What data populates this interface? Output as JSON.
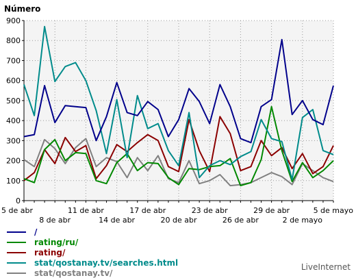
{
  "chart_data": {
    "type": "line",
    "title": "Número",
    "ylim": [
      0,
      900
    ],
    "yticks": [
      0,
      100,
      200,
      300,
      400,
      500,
      600,
      700,
      800,
      900
    ],
    "xtick_labels_row1": [
      {
        "i": 0,
        "label": "5 de abr"
      },
      {
        "i": 6,
        "label": "11 de abr"
      },
      {
        "i": 12,
        "label": "17 de abr"
      },
      {
        "i": 18,
        "label": "23 de abr"
      },
      {
        "i": 24,
        "label": "29 de abr"
      },
      {
        "i": 30,
        "label": "5 de mayo"
      }
    ],
    "xtick_labels_row2": [
      {
        "i": 3,
        "label": "8 de abr"
      },
      {
        "i": 9,
        "label": "14 de abr"
      },
      {
        "i": 15,
        "label": "20 de abr"
      },
      {
        "i": 21,
        "label": "26 de abr"
      },
      {
        "i": 27,
        "label": "2 de mayo"
      }
    ],
    "grid": true,
    "series": [
      {
        "name": "/",
        "color": "#00008b",
        "values": [
          320,
          330,
          575,
          390,
          475,
          470,
          465,
          300,
          420,
          590,
          440,
          425,
          495,
          455,
          320,
          405,
          560,
          495,
          385,
          580,
          470,
          310,
          290,
          470,
          505,
          805,
          430,
          500,
          405,
          380,
          575
        ]
      },
      {
        "name": "rating/ru/",
        "color": "#008800",
        "values": [
          110,
          90,
          255,
          305,
          200,
          240,
          235,
          100,
          85,
          190,
          235,
          150,
          190,
          185,
          115,
          80,
          160,
          155,
          170,
          175,
          210,
          75,
          90,
          205,
          470,
          250,
          95,
          190,
          115,
          150,
          200
        ]
      },
      {
        "name": "rating/",
        "color": "#8b0000",
        "values": [
          100,
          140,
          255,
          185,
          315,
          245,
          275,
          110,
          175,
          280,
          245,
          290,
          330,
          300,
          170,
          145,
          405,
          250,
          145,
          420,
          335,
          150,
          170,
          300,
          225,
          265,
          160,
          235,
          135,
          170,
          275
        ]
      },
      {
        "name": "stat/qostanay.tv/searches.html",
        "color": "#008b8b",
        "values": [
          580,
          425,
          870,
          595,
          670,
          690,
          600,
          450,
          235,
          505,
          215,
          525,
          360,
          385,
          250,
          175,
          440,
          115,
          175,
          200,
          180,
          220,
          245,
          405,
          310,
          295,
          105,
          415,
          455,
          250,
          230
        ]
      },
      {
        "name": "stat/qostanay.tv/",
        "color": "#808080",
        "values": [
          205,
          170,
          305,
          260,
          185,
          265,
          310,
          170,
          215,
          195,
          115,
          215,
          150,
          225,
          110,
          90,
          200,
          85,
          100,
          130,
          75,
          80,
          90,
          115,
          140,
          120,
          80,
          185,
          150,
          115,
          95
        ]
      }
    ]
  },
  "legend_title": "Número",
  "brand": "LiveInternet"
}
